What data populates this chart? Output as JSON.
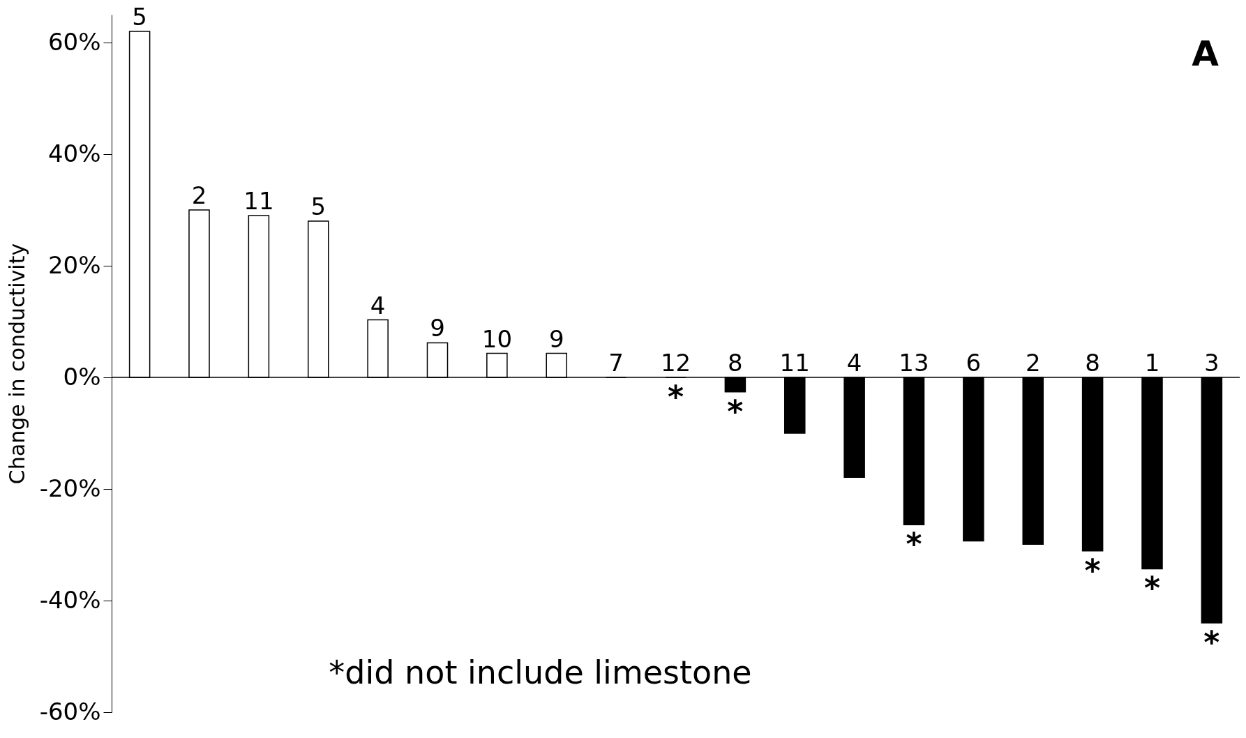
{
  "chart_data": {
    "type": "bar",
    "ylabel": "Change in conductivity",
    "categories": [
      "5",
      "2",
      "11",
      "5",
      "4",
      "9",
      "10",
      "9",
      "7",
      "12",
      "8",
      "11",
      "4",
      "13",
      "6",
      "2",
      "8",
      "1",
      "3"
    ],
    "values": [
      62,
      30,
      29,
      28,
      10.3,
      6.2,
      4.3,
      4.3,
      0,
      0,
      -2.6,
      -10,
      -17.9,
      -26.4,
      -29.3,
      -29.9,
      -31.1,
      -34.3,
      -44
    ],
    "colors": [
      "#ffffff",
      "#ffffff",
      "#ffffff",
      "#ffffff",
      "#ffffff",
      "#ffffff",
      "#ffffff",
      "#ffffff",
      "#ffffff",
      "#ffffff",
      "#000000",
      "#000000",
      "#000000",
      "#000000",
      "#000000",
      "#000000",
      "#000000",
      "#000000",
      "#000000"
    ],
    "ylim": [
      -60,
      65
    ],
    "yticks": [
      {
        "value": -60,
        "label": "-60%"
      },
      {
        "value": -40,
        "label": "-40%"
      },
      {
        "value": -20,
        "label": "-20%"
      },
      {
        "value": 0,
        "label": "0%"
      },
      {
        "value": 20,
        "label": "20%"
      },
      {
        "value": 40,
        "label": "40%"
      },
      {
        "value": 60,
        "label": "60%"
      }
    ],
    "grid": false,
    "legend": false,
    "annotations": [
      "A",
      "*did not include limestone",
      {
        "text": "*",
        "x": "12",
        "y": 0
      },
      {
        "text": "*",
        "x": "8",
        "y": -2.6
      },
      {
        "text": "*",
        "x": "13",
        "y": -26.4
      },
      {
        "text": "*",
        "y": -31.1
      },
      {
        "text": "*",
        "x": "1",
        "y": -34.3
      },
      {
        "text": "*",
        "x": "3",
        "y": -44
      }
    ]
  }
}
